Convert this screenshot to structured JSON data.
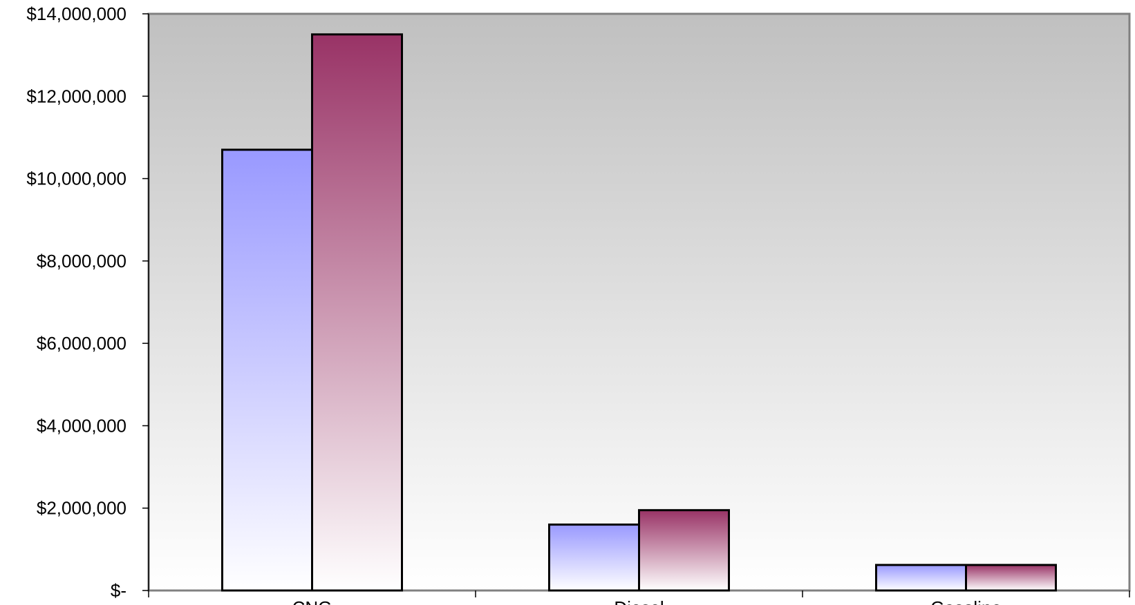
{
  "chart_data": {
    "type": "bar",
    "categories": [
      "CNG",
      "Diesel",
      "Gasoline"
    ],
    "series": [
      {
        "values": [
          10700000,
          1600000,
          620000
        ],
        "color": "#9999ff"
      },
      {
        "values": [
          13500000,
          1950000,
          620000
        ],
        "color": "#993366"
      }
    ],
    "ylim": [
      0,
      14000000
    ],
    "yticks": [
      0,
      2000000,
      4000000,
      6000000,
      8000000,
      10000000,
      12000000,
      14000000
    ],
    "ytick_labels": [
      "$-",
      "$2,000,000",
      "$4,000,000",
      "$6,000,000",
      "$8,000,000",
      "$10,000,000",
      "$12,000,000",
      "$14,000,000"
    ],
    "grid": false,
    "legend": "none",
    "background": {
      "top": "#c0c0c0",
      "bottom": "#ffffff"
    }
  }
}
